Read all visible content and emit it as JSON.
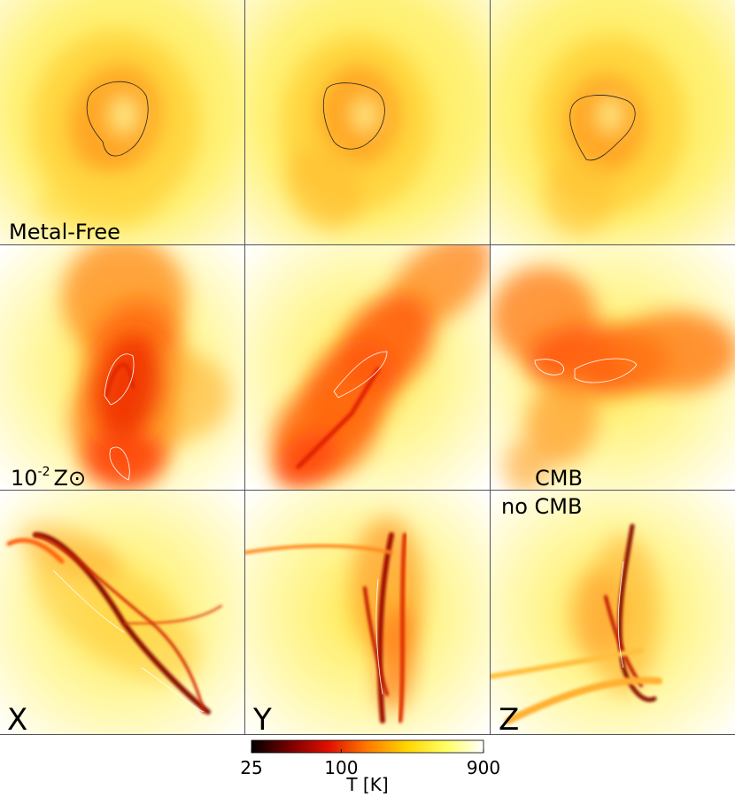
{
  "panel_labels": {
    "metal_free": "Metal-Free",
    "metallicity": {
      "base": "10",
      "exponent": "-2",
      "symbol": "Z⊙"
    },
    "cmb": "CMB",
    "no_cmb": "no CMB"
  },
  "axis_labels": [
    "X",
    "Y",
    "Z"
  ],
  "colorbar": {
    "label": "T [K]",
    "lim": [
      25,
      900
    ],
    "ticks": [
      25,
      100,
      900
    ],
    "scale": "log",
    "colormap": [
      "#000000",
      "#7a0000",
      "#e01000",
      "#ff7a00",
      "#ffd400",
      "#ffff60",
      "#ffffff"
    ]
  }
}
